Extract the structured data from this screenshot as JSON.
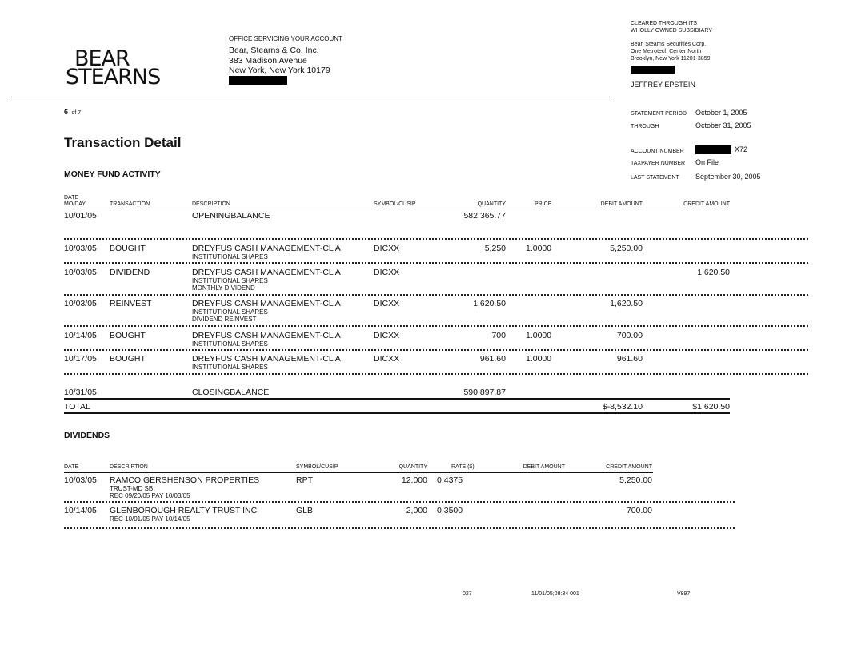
{
  "logo": {
    "line1": "BEAR",
    "line2": "STEARNS"
  },
  "office": {
    "heading": "OFFICE SERVICING YOUR ACCOUNT",
    "name": "Bear, Stearns & Co. Inc.",
    "street": "383 Madison Avenue",
    "city": "New York, New York  10179"
  },
  "clearing": {
    "line1": "CLEARED THROUGH ITS",
    "line2": "WHOLLY OWNED SUBSIDIARY",
    "name": "Bear, Stearns Securities Corp.",
    "street": "One Metrotech Center North",
    "city": "Brooklyn,  New York  11201-3859",
    "client": "JEFFREY EPSTEIN"
  },
  "page": {
    "number": "6",
    "of": "of 7"
  },
  "statement": {
    "period_label": "STATEMENT PERIOD",
    "period_value": "October 1, 2005",
    "through_label": "THROUGH",
    "through_value": "October 31, 2005",
    "account_label": "ACCOUNT NUMBER",
    "account_suffix": "X72",
    "taxpayer_label": "TAXPAYER NUMBER",
    "taxpayer_value": "On File",
    "last_label": "LAST STATEMENT",
    "last_value": "September 30, 2005"
  },
  "title": "Transaction Detail",
  "money_fund": {
    "heading": "MONEY FUND ACTIVITY",
    "columns": {
      "date1": "DATE",
      "date2": "MO/DAY",
      "transaction": "TRANSACTION",
      "description": "DESCRIPTION",
      "symbol": "SYMBOL/CUSIP",
      "quantity": "QUANTITY",
      "price": "PRICE",
      "debit": "DEBIT AMOUNT",
      "credit": "CREDIT AMOUNT"
    },
    "opening": {
      "date": "10/01/05",
      "description": "OPENINGBALANCE",
      "quantity": "582,365.77"
    },
    "rows": [
      {
        "date": "10/03/05",
        "transaction": "BOUGHT",
        "description": "DREYFUS CASH MANAGEMENT-CL A",
        "sub": [
          "INSTITUTIONAL SHARES"
        ],
        "symbol": "DICXX",
        "quantity": "5,250",
        "price": "1.0000",
        "debit": "5,250.00",
        "credit": ""
      },
      {
        "date": "10/03/05",
        "transaction": "DIVIDEND",
        "description": "DREYFUS CASH MANAGEMENT-CL A",
        "sub": [
          "INSTITUTIONAL SHARES",
          "MONTHLY DIVIDEND"
        ],
        "symbol": "DICXX",
        "quantity": "",
        "price": "",
        "debit": "",
        "credit": "1,620.50"
      },
      {
        "date": "10/03/05",
        "transaction": "REINVEST",
        "description": "DREYFUS CASH MANAGEMENT-CL A",
        "sub": [
          "INSTITUTIONAL SHARES",
          "DIVIDEND REINVEST"
        ],
        "symbol": "DICXX",
        "quantity": "1,620.50",
        "price": "",
        "debit": "1,620.50",
        "credit": ""
      },
      {
        "date": "10/14/05",
        "transaction": "BOUGHT",
        "description": "DREYFUS CASH MANAGEMENT-CL A",
        "sub": [
          "INSTITUTIONAL SHARES"
        ],
        "symbol": "DICXX",
        "quantity": "700",
        "price": "1.0000",
        "debit": "700.00",
        "credit": ""
      },
      {
        "date": "10/17/05",
        "transaction": "BOUGHT",
        "description": "DREYFUS CASH MANAGEMENT-CL A",
        "sub": [
          "INSTITUTIONAL SHARES"
        ],
        "symbol": "DICXX",
        "quantity": "961.60",
        "price": "1.0000",
        "debit": "961.60",
        "credit": ""
      }
    ],
    "closing": {
      "date": "10/31/05",
      "description": "CLOSINGBALANCE",
      "quantity": "590,897.87"
    },
    "total": {
      "label": "TOTAL",
      "debit": "$-8,532.10",
      "credit": "$1,620.50"
    }
  },
  "dividends": {
    "heading": "DIVIDENDS",
    "columns": {
      "date": "DATE",
      "description": "DESCRIPTION",
      "symbol": "SYMBOL/CUSIP",
      "quantity": "QUANTITY",
      "rate": "RATE ($)",
      "debit": "DEBIT AMOUNT",
      "credit": "CREDIT AMOUNT"
    },
    "rows": [
      {
        "date": "10/03/05",
        "description": "RAMCO GERSHENSON PROPERTIES",
        "sub": [
          "TRUST-MD SBI",
          "REC 09/20/05 PAY 10/03/05"
        ],
        "symbol": "RPT",
        "quantity": "12,000",
        "rate": "0.4375",
        "debit": "",
        "credit": "5,250.00"
      },
      {
        "date": "10/14/05",
        "description": "GLENBOROUGH REALTY TRUST INC",
        "sub": [
          "REC 10/01/05 PAY 10/14/05"
        ],
        "symbol": "GLB",
        "quantity": "2,000",
        "rate": "0.3500",
        "debit": "",
        "credit": "700.00"
      }
    ]
  },
  "footer": {
    "code1": "027",
    "timestamp": "11/01/05;08:34  001",
    "code2": "V897"
  }
}
